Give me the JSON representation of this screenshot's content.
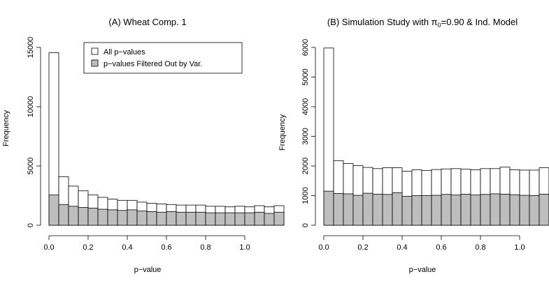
{
  "chart_data": [
    {
      "type": "bar",
      "title": "(A) Wheat Comp. 1",
      "xlabel": "p−value",
      "ylabel": "Frequency",
      "xlim": [
        0,
        1
      ],
      "ylim": [
        0,
        15000
      ],
      "bin_width": 0.05,
      "x_ticks": [
        "0.0",
        "0.2",
        "0.4",
        "0.6",
        "0.8",
        "1.0"
      ],
      "y_ticks": [
        "0",
        "5000",
        "10000",
        "15000"
      ],
      "legend": {
        "position": "top-center",
        "entries": [
          {
            "label": "All p−values",
            "color": "#ffffff"
          },
          {
            "label": "p−values Filtered Out by Var.",
            "color": "#bebebe"
          }
        ]
      },
      "series": [
        {
          "name": "All p−values",
          "color": "#ffffff",
          "values": [
            14550,
            4100,
            3300,
            2900,
            2550,
            2350,
            2200,
            2100,
            2100,
            1950,
            1850,
            1800,
            1750,
            1700,
            1700,
            1700,
            1600,
            1600,
            1550,
            1600,
            1550,
            1650,
            1550,
            1650
          ]
        },
        {
          "name": "p−values Filtered Out by Var.",
          "color": "#bebebe",
          "values": [
            2550,
            1750,
            1600,
            1500,
            1450,
            1350,
            1300,
            1250,
            1300,
            1200,
            1150,
            1100,
            1150,
            1100,
            1100,
            1100,
            1050,
            1050,
            1050,
            1050,
            1050,
            1100,
            1000,
            1100
          ]
        }
      ]
    },
    {
      "type": "bar",
      "title_prefix": "(B) Simulation Study with π",
      "title_subscript": "0",
      "title_suffix": "=0.90 & Ind. Model",
      "xlabel": "p−value",
      "ylabel": "Frequency",
      "xlim": [
        0,
        1
      ],
      "ylim": [
        0,
        6000
      ],
      "bin_width": 0.05,
      "x_ticks": [
        "0.0",
        "0.2",
        "0.4",
        "0.6",
        "0.8",
        "1.0"
      ],
      "y_ticks": [
        "0",
        "1000",
        "2000",
        "3000",
        "4000",
        "5000",
        "6000"
      ],
      "series": [
        {
          "name": "All p−values",
          "color": "#ffffff",
          "values": [
            5980,
            2180,
            2080,
            2010,
            1950,
            1910,
            1940,
            1940,
            1820,
            1870,
            1850,
            1880,
            1900,
            1910,
            1890,
            1870,
            1910,
            1910,
            1960,
            1870,
            1860,
            1860,
            1940,
            1930
          ]
        },
        {
          "name": "p−values Filtered Out by Var.",
          "color": "#bebebe",
          "values": [
            1150,
            1070,
            1060,
            1010,
            1080,
            1050,
            1040,
            1100,
            980,
            1000,
            1000,
            1010,
            1040,
            1020,
            1050,
            1020,
            1040,
            1060,
            1050,
            1030,
            1010,
            1000,
            1050,
            1060
          ]
        }
      ]
    }
  ]
}
